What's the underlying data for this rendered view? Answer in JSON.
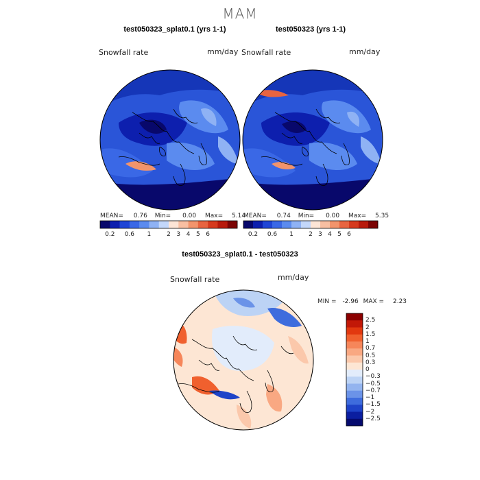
{
  "figure": {
    "season": "MAM",
    "variable_label": "Snowfall rate",
    "units": "mm/day"
  },
  "panels": [
    {
      "id": "left",
      "title": "test050323_splat0.1 (yrs 1-1)",
      "stats": {
        "mean_label": "MEAN=",
        "mean": "0.76",
        "min_label": "Min=",
        "min": "0.00",
        "max_label": "Max=",
        "max": "5.14"
      }
    },
    {
      "id": "right",
      "title": "test050323 (yrs 1-1)",
      "stats": {
        "mean_label": "MEAN=",
        "mean": "0.74",
        "min_label": "Min=",
        "min": "0.00",
        "max_label": "Max=",
        "max": "5.35"
      }
    }
  ],
  "diff_panel": {
    "title": "test050323_splat0.1 - test050323",
    "stats": {
      "min_label": "MIN =",
      "min": "-2.96",
      "max_label": "MAX =",
      "max": "2.23"
    }
  },
  "colorbar_h": {
    "tick_labels": [
      "0.2",
      "0.6",
      "1",
      "2",
      "3",
      "4",
      "5",
      "6"
    ],
    "colors": [
      "#08086b",
      "#0d1fae",
      "#1f45d6",
      "#3a68e6",
      "#5b8bef",
      "#8fb2f4",
      "#c3d7fa",
      "#fde5d6",
      "#f8bfa2",
      "#f2946c",
      "#e86440",
      "#d63a1e",
      "#b81a0c",
      "#7c0404"
    ]
  },
  "colorbar_v": {
    "levels": [
      "2.5",
      "2",
      "1.5",
      "1",
      "0.7",
      "0.5",
      "0.3",
      "0",
      "−0.3",
      "−0.5",
      "−0.7",
      "−1",
      "−1.5",
      "−2",
      "−2.5"
    ],
    "colors": [
      "#8b0000",
      "#c21807",
      "#e2380f",
      "#f0602e",
      "#f6865a",
      "#f9a882",
      "#fbc8ab",
      "#fde6d4",
      "#e2ecfb",
      "#bcd3f5",
      "#93b4ef",
      "#6b93e8",
      "#3e6cdd",
      "#1e43c8",
      "#0b1ea0",
      "#050a6e"
    ]
  }
}
